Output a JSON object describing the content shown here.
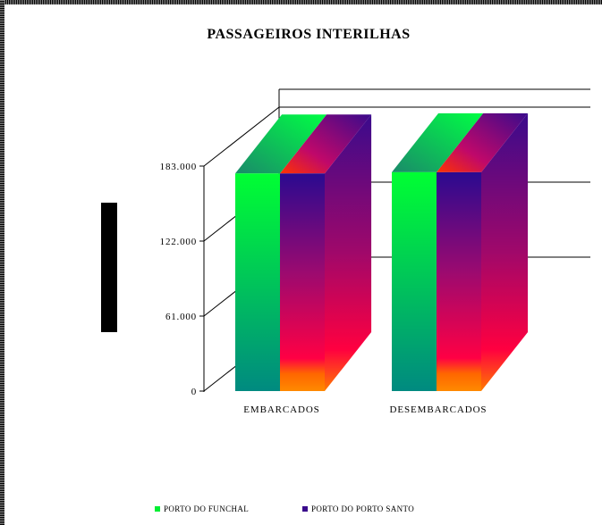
{
  "chart_data": {
    "type": "bar",
    "title": "PASSAGEIROS INTERILHAS",
    "categories": [
      "EMBARCADOS",
      "DESEMBARCADOS"
    ],
    "series": [
      {
        "name": "PORTO DO FUNCHAL",
        "values": [
          177000,
          178000
        ],
        "color": "#00ff33"
      },
      {
        "name": "PORTO DO PORTO SANTO",
        "values": [
          177000,
          178000
        ],
        "color": "#3a0a8c"
      }
    ],
    "yticks": [
      "0",
      "61.000",
      "122.000",
      "183.000"
    ],
    "ylim": [
      0,
      183000
    ],
    "grid": true,
    "legend": "bottom"
  },
  "legend_labels": {
    "funchal": "PORTO DO FUNCHAL",
    "porto_santo": "PORTO DO PORTO SANTO"
  }
}
